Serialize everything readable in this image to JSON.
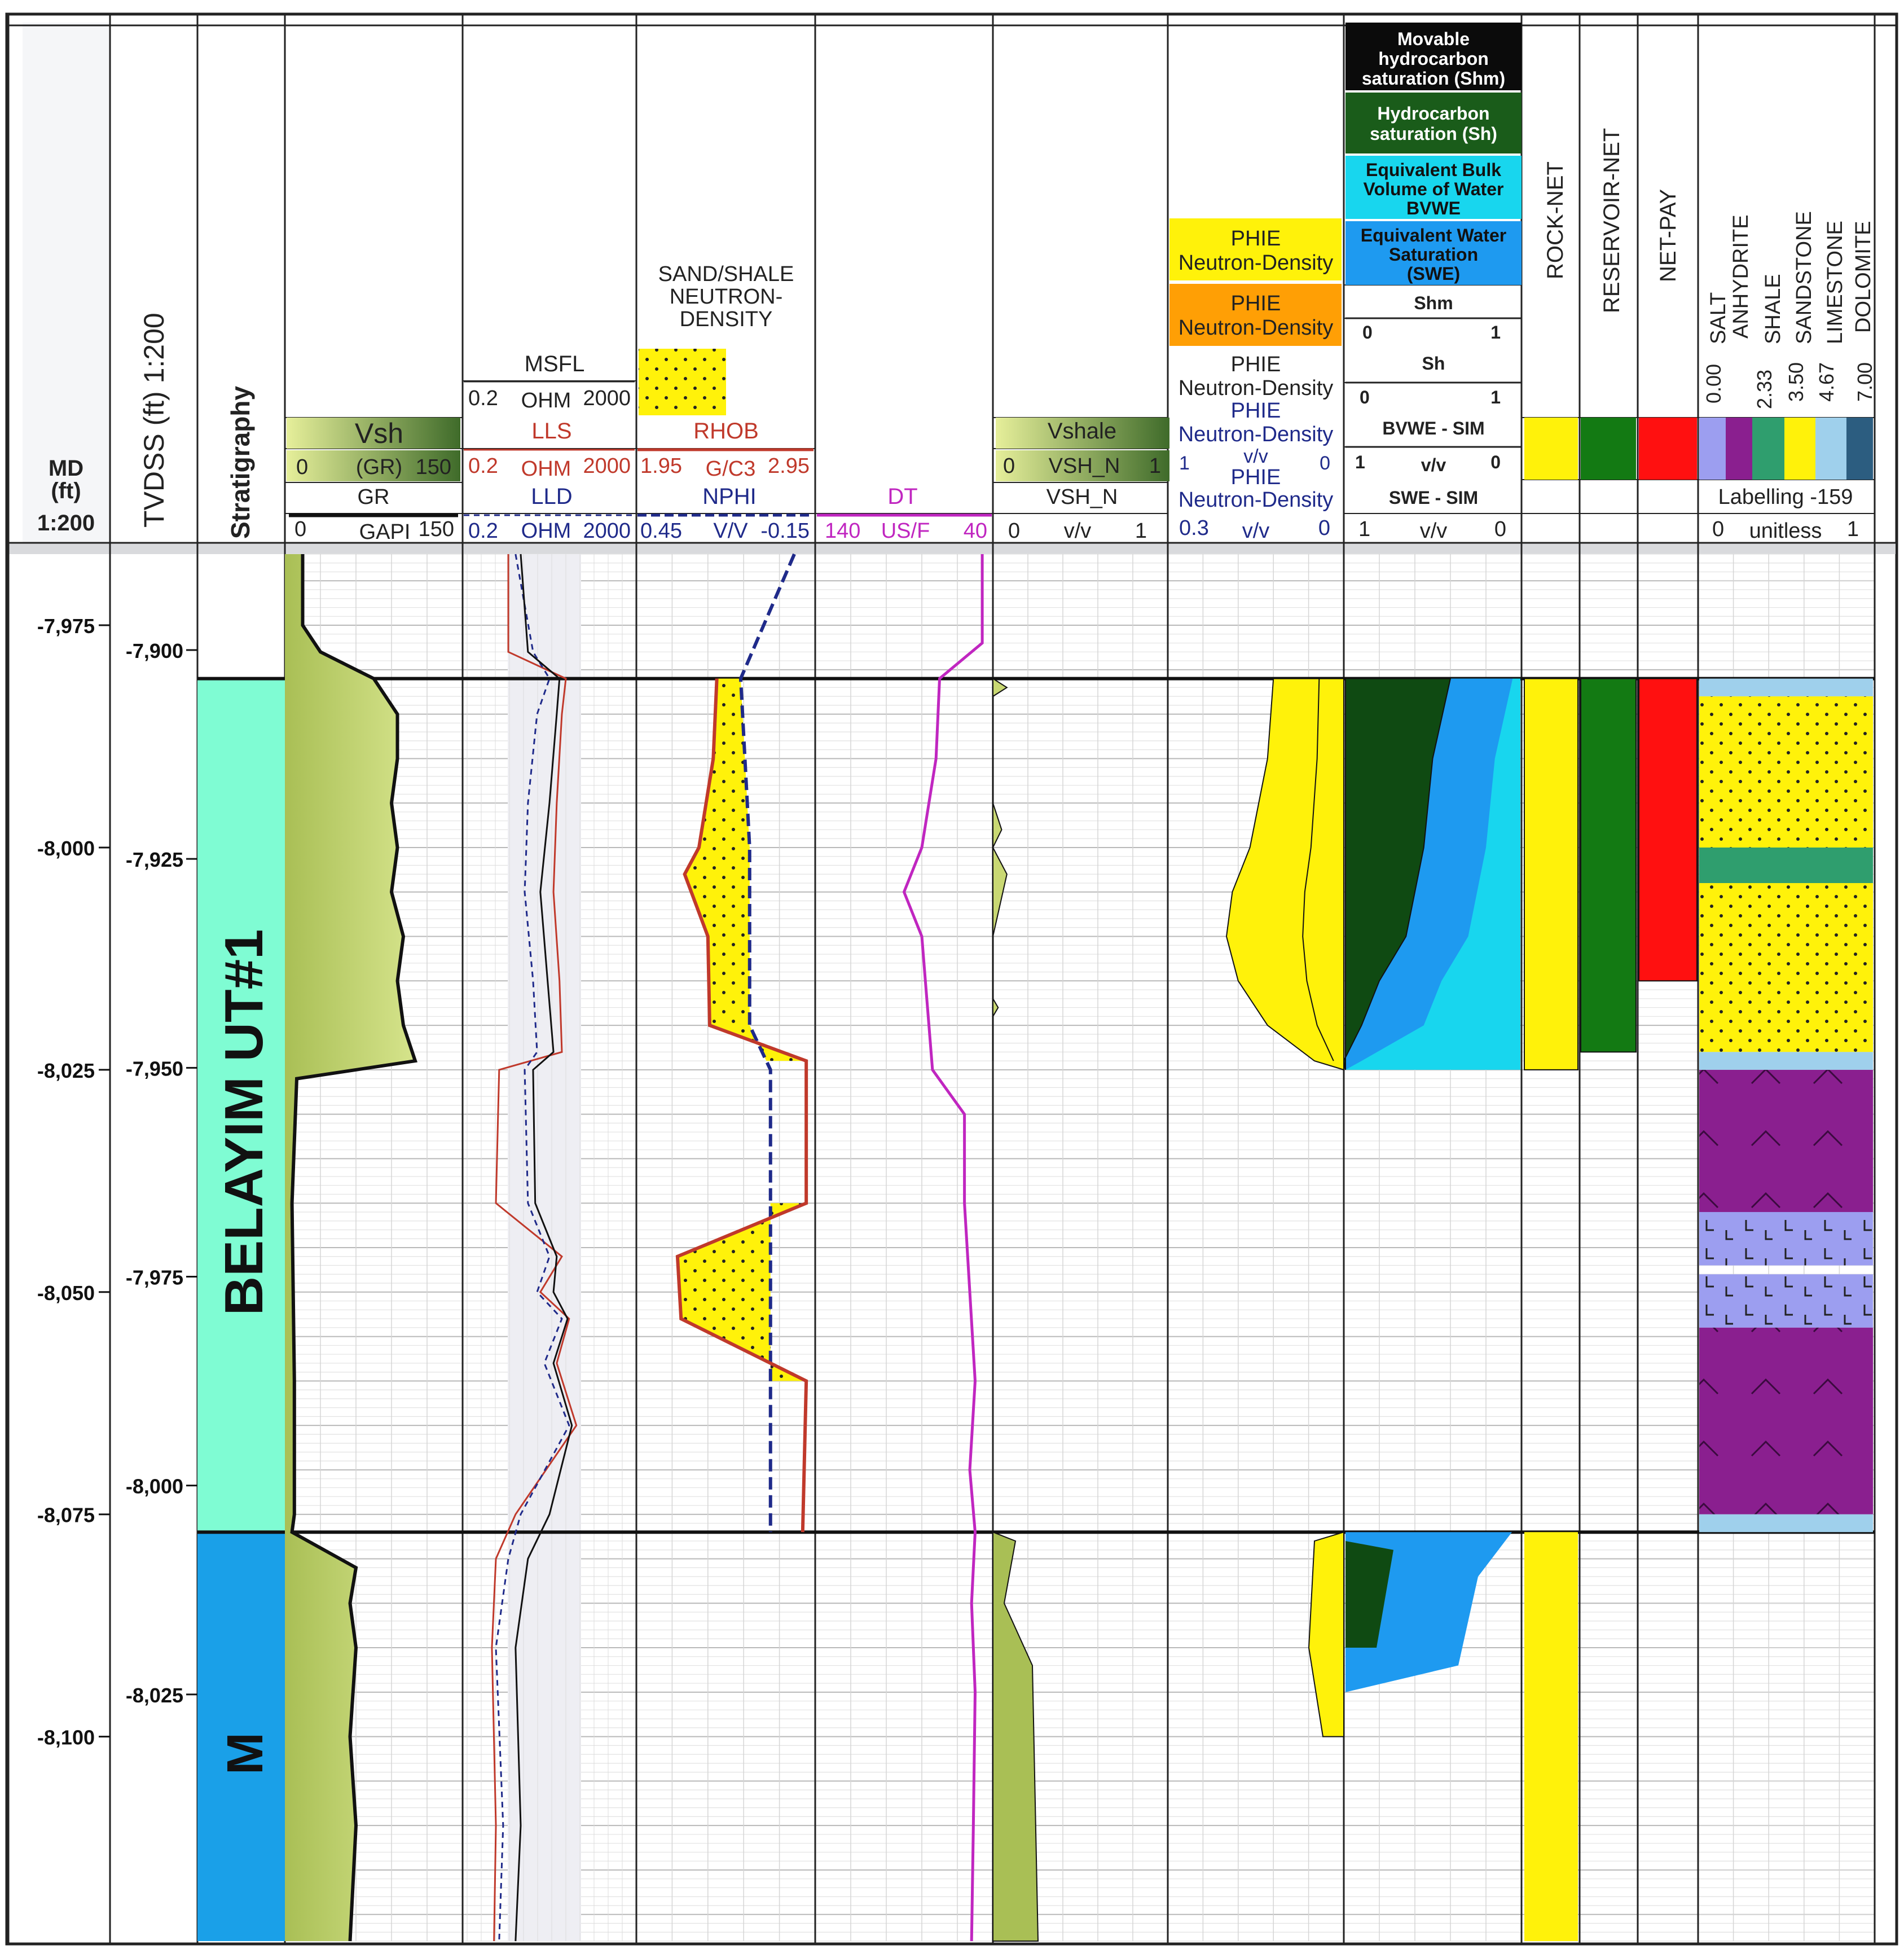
{
  "chart_data": {
    "type": "well-log",
    "header": {
      "md": {
        "line1": "MD",
        "line2": "(ft)",
        "line3": "1:200"
      },
      "tvdss": "TVDSS (ft) 1:200",
      "stratigraphy": "Stratigraphy"
    },
    "tracks": {
      "gr": {
        "area_label": "Vsh",
        "area_scale": [
          "0",
          "(GR)",
          "150"
        ],
        "curve": "GR",
        "scale": [
          "0",
          "GAPI",
          "150"
        ]
      },
      "resistivity": {
        "msfl": {
          "name": "MSFL",
          "scale": [
            "0.2",
            "OHM",
            "2000"
          ]
        },
        "lls": {
          "name": "LLS",
          "scale": [
            "0.2",
            "OHM",
            "2000"
          ]
        },
        "lld": {
          "name": "LLD",
          "scale": [
            "0.2",
            "OHM",
            "2000"
          ]
        }
      },
      "porosity": {
        "legend_title": "SAND/SHALE NEUTRON-DENSITY",
        "legend_lines": [
          "SAND/SHALE",
          "NEUTRON-",
          "DENSITY"
        ],
        "rhob": {
          "name": "RHOB",
          "scale": [
            "1.95",
            "G/C3",
            "2.95"
          ]
        },
        "nphi": {
          "name": "NPHI",
          "scale": [
            "0.45",
            "V/V",
            "-0.15"
          ]
        }
      },
      "sonic": {
        "name": "DT",
        "scale": [
          "140",
          "US/F",
          "40"
        ]
      },
      "vshale": {
        "area_label": "Vshale",
        "area_scale": [
          "0",
          "VSH_N",
          "1"
        ],
        "curve": "VSH_N",
        "scale": [
          "0",
          "v/v",
          "1"
        ]
      },
      "phie": {
        "yellow": [
          "PHIE",
          "Neutron-Density"
        ],
        "orange": [
          "PHIE",
          "Neutron-Density"
        ],
        "black": [
          "PHIE",
          "Neutron-Density"
        ],
        "blue": [
          "PHIE",
          "Neutron-Density"
        ],
        "blue_scale": [
          "1",
          "v/v",
          "0"
        ],
        "last": [
          "PHIE",
          "Neutron-Density"
        ],
        "scale": [
          "0.3",
          "v/v",
          "0"
        ]
      },
      "saturation": {
        "shm": "Movable hydrocarbon saturation (Shm)",
        "shm_lines": [
          "Movable",
          "hydrocarbon",
          "saturation (Shm)"
        ],
        "sh_lines": [
          "Hydrocarbon",
          "saturation (Sh)"
        ],
        "bvwe_lines": [
          "Equivalent Bulk",
          "Volume of Water",
          "BVWE"
        ],
        "swe_lines": [
          "Equivalent Water",
          "Saturation",
          "(SWE)"
        ],
        "shm_curve": "Shm",
        "shm_scale": [
          "0",
          "1"
        ],
        "sh_curve": "Sh",
        "sh_scale": [
          "0",
          "1"
        ],
        "bvwe_curve": "BVWE - SIM",
        "bvwe_scale": [
          "1",
          "v/v",
          "0"
        ],
        "swe_curve": "SWE - SIM",
        "scale": [
          "1",
          "v/v",
          "0"
        ]
      },
      "flags": {
        "rock": "ROCK-NET",
        "reservoir": "RESERVOIR-NET",
        "pay": "NET-PAY"
      },
      "lithology": {
        "names": [
          "SALT",
          "ANHYDRITE",
          "SHALE",
          "SANDSTONE",
          "LIMESTONE",
          "DOLOMITE"
        ],
        "codes": [
          "0.00",
          "2.33",
          "3.50",
          "4.67",
          "7.00"
        ],
        "label": "Labelling -159",
        "scale": [
          "0",
          "unitless",
          "1"
        ]
      }
    },
    "md_ticks": [
      "-7,975",
      "-8,000",
      "-8,025",
      "-8,050",
      "-8,075",
      "-8,100"
    ],
    "md_tick_values": [
      -7975,
      -8000,
      -8025,
      -8050,
      -8075,
      -8100
    ],
    "tvdss_ticks": [
      "-7,900",
      "-7,925",
      "-7,950",
      "-7,975",
      "-8,000",
      "-8,025"
    ],
    "tvdss_tick_values": [
      -7900,
      -7925,
      -7950,
      -7975,
      -8000,
      -8025
    ],
    "md_range": [
      -7967,
      -8123
    ],
    "zones": [
      {
        "name": "BELAYIM UT#1",
        "top_md": -7981,
        "base_md": -8077
      },
      {
        "name": "M",
        "top_md": -8077,
        "base_md": -8123
      }
    ],
    "net_flags": {
      "rock_net": [
        [
          -7981,
          -8025
        ]
      ],
      "reservoir_net": [
        [
          -7981,
          -8023
        ]
      ],
      "net_pay": [
        [
          -7981,
          -8015
        ]
      ]
    },
    "lithology_intervals": [
      {
        "top_md": -7983,
        "base_md": -8000,
        "lith": "SANDSTONE"
      },
      {
        "top_md": -8000,
        "base_md": -8004,
        "lith": "SHALE"
      },
      {
        "top_md": -8004,
        "base_md": -8023,
        "lith": "SANDSTONE"
      },
      {
        "top_md": -8025,
        "base_md": -8041,
        "lith": "ANHYDRITE"
      },
      {
        "top_md": -8041,
        "base_md": -8047,
        "lith": "SALT"
      },
      {
        "top_md": -8048,
        "base_md": -8054,
        "lith": "SALT"
      },
      {
        "top_md": -8054,
        "base_md": -8075,
        "lith": "ANHYDRITE"
      }
    ],
    "gr_curve": {
      "unit": "GAPI",
      "depths": [
        -7967,
        -7975,
        -7978,
        -7981,
        -7985,
        -7990,
        -7995,
        -8000,
        -8005,
        -8010,
        -8015,
        -8020,
        -8024,
        -8026,
        -8040,
        -8060,
        -8075,
        -8077,
        -8081,
        -8085,
        -8090,
        -8100,
        -8110,
        -8123
      ],
      "values": [
        15,
        15,
        30,
        75,
        95,
        95,
        90,
        95,
        90,
        100,
        95,
        100,
        110,
        10,
        6,
        8,
        8,
        6,
        60,
        55,
        60,
        55,
        60,
        55
      ]
    },
    "dt_curve": {
      "unit": "US/F",
      "depths": [
        -7967,
        -7977,
        -7981,
        -7990,
        -8000,
        -8005,
        -8010,
        -8015,
        -8020,
        -8025,
        -8030,
        -8040,
        -8050,
        -8060,
        -8070,
        -8077,
        -8085,
        -8095,
        -8110,
        -8123
      ],
      "values": [
        46,
        46,
        70,
        72,
        80,
        90,
        80,
        78,
        76,
        74,
        56,
        56,
        53,
        50,
        53,
        50,
        52,
        50,
        51,
        52
      ]
    },
    "rhob_curve": {
      "unit": "G/C3",
      "depths": [
        -7981,
        -7990,
        -8000,
        -8003,
        -8010,
        -8020,
        -8024,
        -8040,
        -8046,
        -8053,
        -8060,
        -8077
      ],
      "values": [
        2.4,
        2.38,
        2.3,
        2.22,
        2.35,
        2.36,
        2.9,
        2.9,
        2.18,
        2.2,
        2.9,
        2.88
      ]
    },
    "nphi_curve": {
      "unit": "V/V",
      "depths": [
        -7967,
        -7981,
        -8000,
        -8020,
        -8025,
        -8040,
        -8060,
        -8077
      ],
      "values": [
        -0.08,
        0.1,
        0.07,
        0.07,
        0.0,
        0.0,
        0.0,
        0.0
      ]
    },
    "phie_curve": {
      "unit": "v/v",
      "depths": [
        -7981,
        -7990,
        -8000,
        -8005,
        -8010,
        -8015,
        -8020,
        -8024
      ],
      "values": [
        0.12,
        0.13,
        0.16,
        0.19,
        0.2,
        0.18,
        0.13,
        0.05
      ]
    },
    "sw_curve": {
      "unit": "v/v",
      "depths": [
        -7981,
        -7990,
        -8000,
        -8005,
        -8010,
        -8015,
        -8020,
        -8024
      ],
      "values": [
        0.05,
        0.15,
        0.2,
        0.25,
        0.3,
        0.45,
        0.55,
        0.9
      ]
    }
  }
}
